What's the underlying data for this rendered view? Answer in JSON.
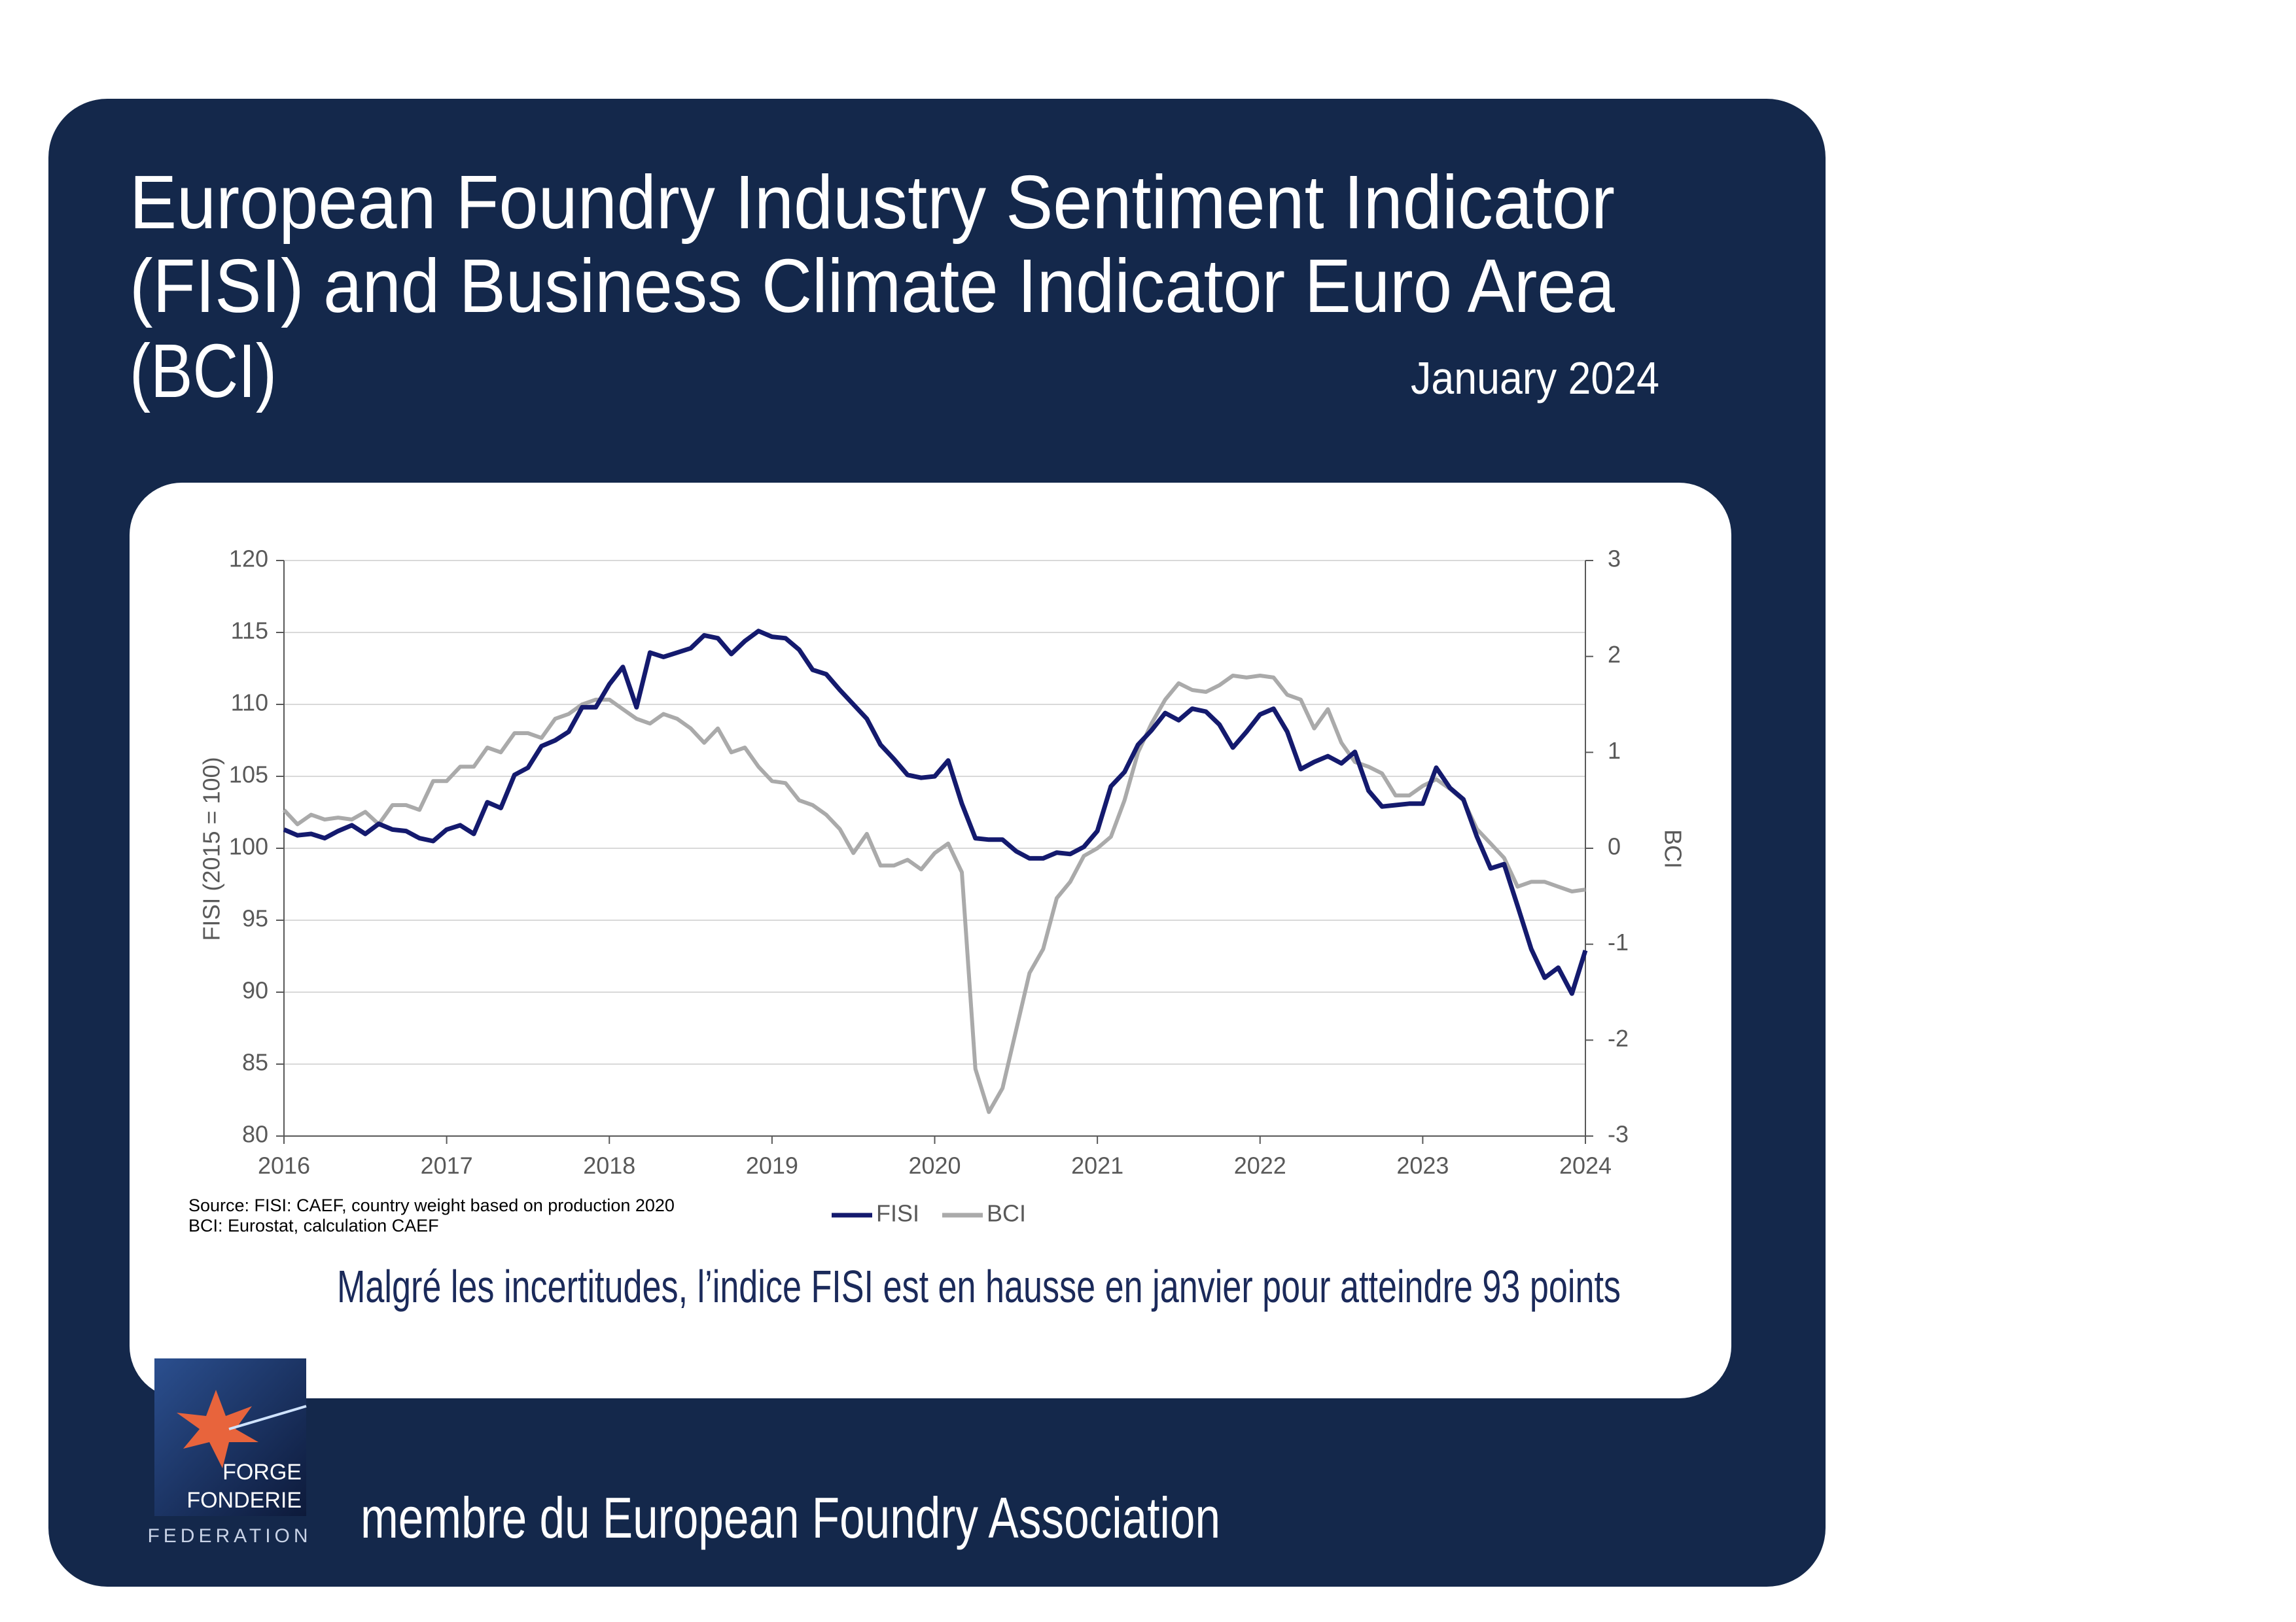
{
  "chart_data": {
    "type": "line",
    "title": [
      "European Foundry Industry Sentiment Indicator",
      "(FISI) and Business Climate Indicator Euro Area",
      "(BCI)"
    ],
    "subtitle": "January 2024",
    "ylabel": "FISI (2015 = 100)",
    "y2label": "BCI",
    "source": [
      "Source: FISI: CAEF, country weight based on production 2020",
      "BCI: Eurostat, calculation CAEF"
    ],
    "annotation": "Malgré les incertitudes, l’indice FISI est en hausse en janvier pour atteindre 93 points",
    "x": [
      2016,
      2016.083,
      2016.167,
      2016.25,
      2016.333,
      2016.417,
      2016.5,
      2016.583,
      2016.667,
      2016.75,
      2016.833,
      2016.917,
      2017,
      2017.083,
      2017.167,
      2017.25,
      2017.333,
      2017.417,
      2017.5,
      2017.583,
      2017.667,
      2017.75,
      2017.833,
      2017.917,
      2018,
      2018.083,
      2018.167,
      2018.25,
      2018.333,
      2018.417,
      2018.5,
      2018.583,
      2018.667,
      2018.75,
      2018.833,
      2018.917,
      2019,
      2019.083,
      2019.167,
      2019.25,
      2019.333,
      2019.417,
      2019.5,
      2019.583,
      2019.667,
      2019.75,
      2019.833,
      2019.917,
      2020,
      2020.083,
      2020.167,
      2020.25,
      2020.333,
      2020.417,
      2020.5,
      2020.583,
      2020.667,
      2020.75,
      2020.833,
      2020.917,
      2021,
      2021.083,
      2021.167,
      2021.25,
      2021.333,
      2021.417,
      2021.5,
      2021.583,
      2021.667,
      2021.75,
      2021.833,
      2021.917,
      2022,
      2022.083,
      2022.167,
      2022.25,
      2022.333,
      2022.417,
      2022.5,
      2022.583,
      2022.667,
      2022.75,
      2022.833,
      2022.917,
      2023,
      2023.083,
      2023.167,
      2023.25,
      2023.333,
      2023.417,
      2023.5,
      2023.583,
      2023.667,
      2023.75,
      2023.833,
      2023.917,
      2024
    ],
    "series": [
      {
        "name": "FISI",
        "color": "#141a6e",
        "values": [
          101.3,
          100.9,
          101.0,
          100.7,
          101.2,
          101.6,
          101.0,
          101.7,
          101.3,
          101.2,
          100.7,
          100.5,
          101.3,
          101.6,
          101.0,
          103.2,
          102.8,
          105.1,
          105.6,
          107.1,
          107.5,
          108.1,
          109.8,
          109.8,
          111.4,
          112.6,
          109.8,
          113.6,
          113.3,
          113.6,
          113.9,
          114.8,
          114.6,
          113.5,
          114.4,
          115.1,
          114.7,
          114.6,
          113.8,
          112.4,
          112.1,
          111.0,
          110.0,
          109.0,
          107.2,
          106.2,
          105.1,
          104.9,
          105.0,
          106.1,
          103.1,
          100.7,
          100.6,
          100.6,
          99.8,
          99.3,
          99.3,
          99.7,
          99.6,
          100.1,
          101.2,
          104.3,
          105.3,
          107.2,
          108.2,
          109.4,
          108.9,
          109.7,
          109.5,
          108.6,
          107.0,
          108.1,
          109.3,
          109.7,
          108.1,
          105.5,
          106.0,
          106.4,
          105.9,
          106.7,
          104.0,
          102.9,
          103.0,
          103.1,
          103.1,
          105.6,
          104.2,
          103.4,
          100.8,
          98.6,
          98.9,
          96.0,
          93.0,
          91.0,
          91.7,
          89.9,
          92.9
        ]
      },
      {
        "name": "BCI",
        "color": "#aaaaaa",
        "axis": "y2",
        "values": [
          0.4,
          0.25,
          0.35,
          0.3,
          0.32,
          0.3,
          0.38,
          0.25,
          0.45,
          0.45,
          0.4,
          0.7,
          0.7,
          0.85,
          0.85,
          1.05,
          1.0,
          1.2,
          1.2,
          1.15,
          1.35,
          1.4,
          1.5,
          1.55,
          1.55,
          1.45,
          1.35,
          1.3,
          1.4,
          1.35,
          1.25,
          1.1,
          1.25,
          1.0,
          1.05,
          0.85,
          0.7,
          0.68,
          0.5,
          0.45,
          0.35,
          0.2,
          -0.05,
          0.15,
          -0.18,
          -0.18,
          -0.12,
          -0.22,
          -0.05,
          0.05,
          -0.25,
          -2.3,
          -2.75,
          -2.5,
          -1.9,
          -1.3,
          -1.05,
          -0.52,
          -0.35,
          -0.08,
          0.0,
          0.12,
          0.5,
          1.0,
          1.3,
          1.55,
          1.72,
          1.65,
          1.63,
          1.7,
          1.8,
          1.78,
          1.8,
          1.78,
          1.6,
          1.55,
          1.25,
          1.45,
          1.1,
          0.9,
          0.85,
          0.78,
          0.55,
          0.55,
          0.65,
          0.72,
          0.62,
          0.5,
          0.2,
          0.05,
          -0.1,
          -0.4,
          -0.35,
          -0.35,
          -0.4,
          -0.45,
          -0.43
        ]
      }
    ],
    "xlim": [
      2016,
      2024
    ],
    "xticks": [
      2016,
      2017,
      2018,
      2019,
      2020,
      2021,
      2022,
      2023,
      2024
    ],
    "ylim": [
      80,
      120
    ],
    "yticks": [
      80,
      85,
      90,
      95,
      100,
      105,
      110,
      115,
      120
    ],
    "y2lim": [
      -3,
      3
    ],
    "y2ticks": [
      -3,
      -2,
      -1,
      0,
      1,
      2,
      3
    ],
    "grid": true,
    "legend": "bottom"
  },
  "logo": [
    "FORGE",
    "FONDERIE",
    "FEDERATION"
  ],
  "footer": "membre du European Foundry Association"
}
